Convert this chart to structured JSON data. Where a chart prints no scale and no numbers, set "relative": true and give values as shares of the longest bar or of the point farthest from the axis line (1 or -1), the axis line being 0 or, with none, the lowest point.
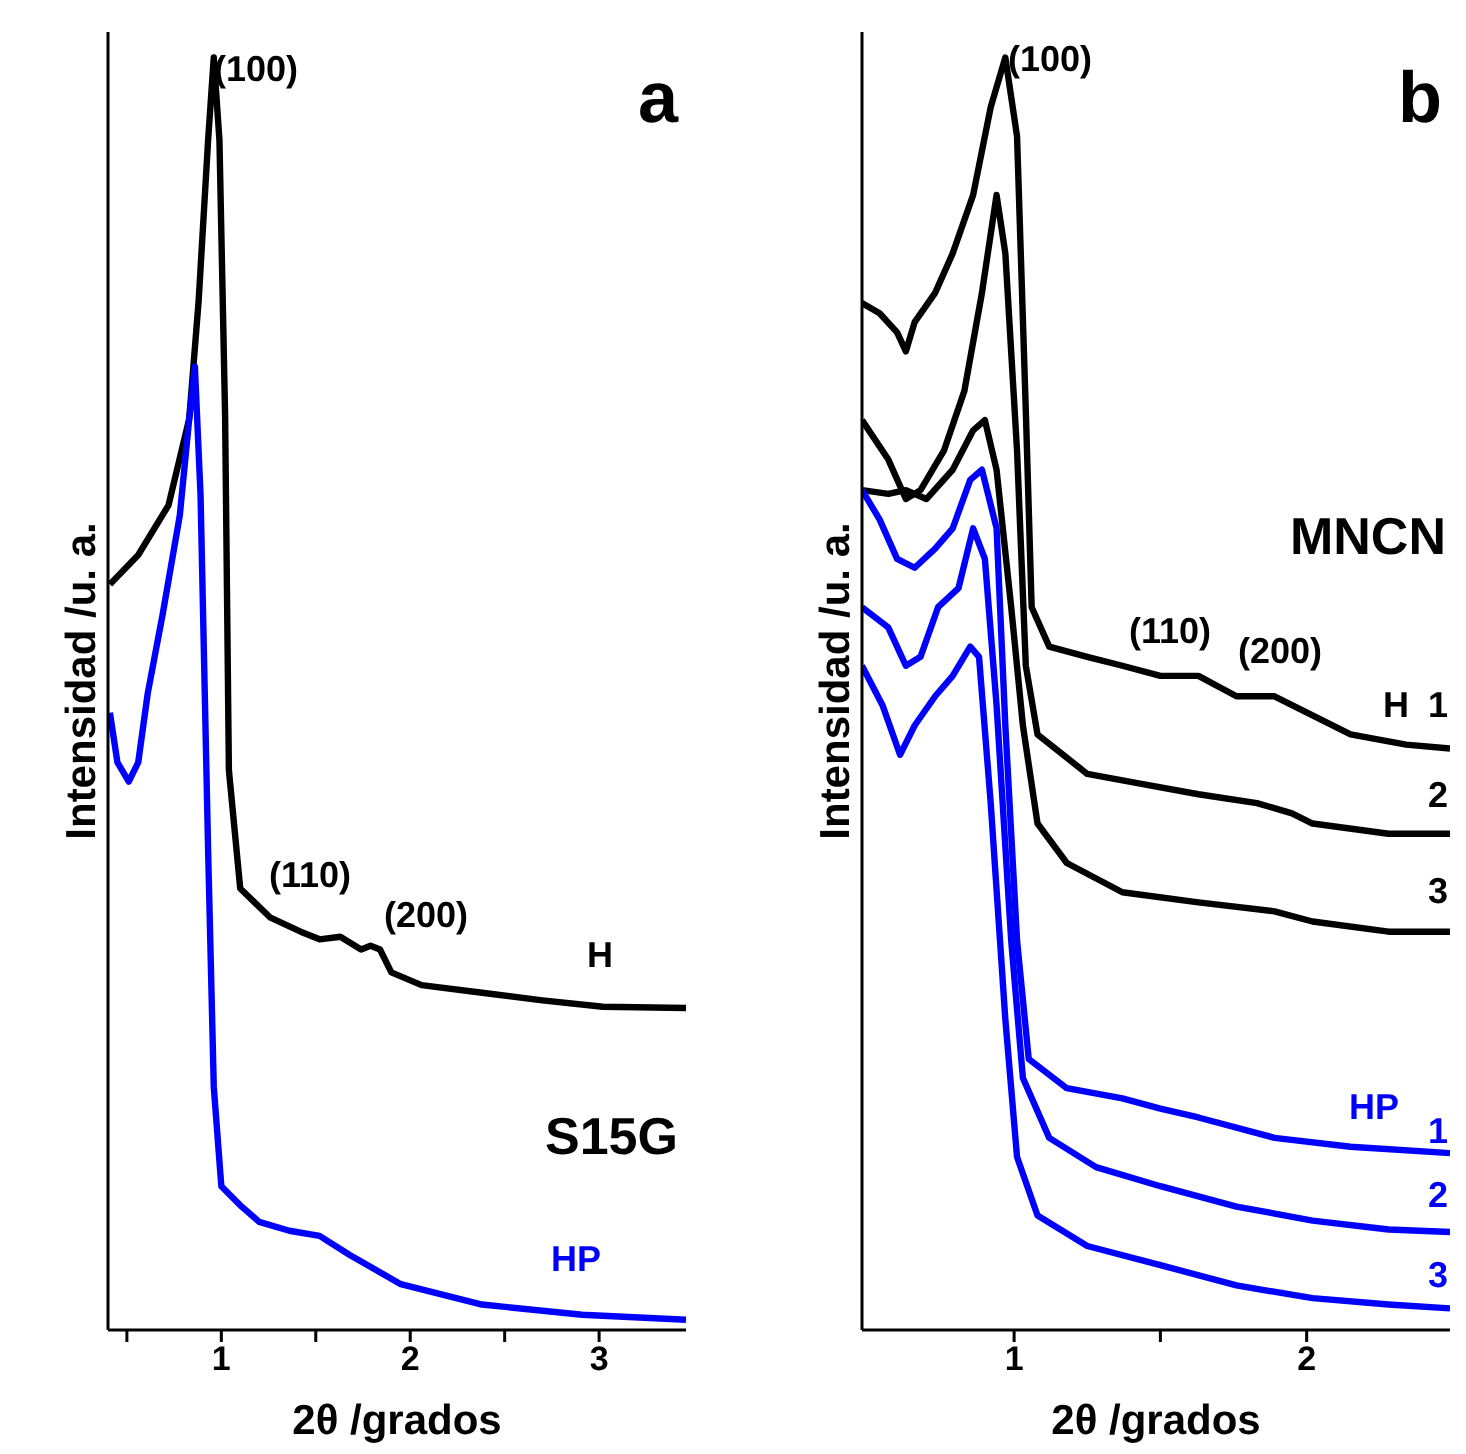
{
  "chart_data": [
    {
      "type": "line",
      "title": "a",
      "subtitle": "S15G",
      "xlabel": "2θ /grados",
      "ylabel": "Intensidad /u. a.",
      "relative": true,
      "tick_labels": "x",
      "grid": false,
      "legend": false,
      "marker": "none",
      "line_style": "solid",
      "xlim": [
        0.4,
        3.46
      ],
      "xticks": [
        {
          "value": 0.5,
          "label": null
        },
        1,
        {
          "value": 1.5,
          "label": null
        },
        2,
        {
          "value": 2.5,
          "label": null
        },
        3
      ],
      "series": [
        {
          "color": "#000000",
          "x": [
            0.41,
            0.56,
            0.72,
            0.83,
            0.88,
            0.93,
            0.96,
            0.99,
            1.02,
            1.04,
            1.1,
            1.26,
            1.42,
            1.52,
            1.63,
            1.74,
            1.79,
            1.84,
            1.9,
            2.06,
            2.38,
            2.7,
            3.02,
            3.46
          ],
          "values": [
            0.586,
            0.609,
            0.648,
            0.716,
            0.809,
            0.935,
            1.0,
            0.935,
            0.718,
            0.44,
            0.347,
            0.324,
            0.313,
            0.307,
            0.309,
            0.299,
            0.302,
            0.299,
            0.281,
            0.271,
            0.265,
            0.259,
            0.254,
            0.253
          ]
        },
        {
          "color": "#0000ff",
          "x": [
            0.41,
            0.45,
            0.51,
            0.56,
            0.61,
            0.69,
            0.78,
            0.83,
            0.86,
            0.89,
            0.93,
            0.96,
            1.0,
            1.1,
            1.2,
            1.36,
            1.52,
            1.68,
            1.95,
            2.38,
            2.91,
            3.46
          ],
          "values": [
            0.485,
            0.446,
            0.431,
            0.446,
            0.5,
            0.563,
            0.64,
            0.716,
            0.757,
            0.656,
            0.377,
            0.191,
            0.113,
            0.098,
            0.085,
            0.078,
            0.074,
            0.059,
            0.036,
            0.02,
            0.012,
            0.008
          ]
        }
      ],
      "annotations": [
        "(100)",
        "(110)",
        "(200)",
        "H",
        "HP"
      ]
    },
    {
      "type": "line",
      "title": "b",
      "subtitle": "MNCN",
      "xlabel": "2θ /grados",
      "ylabel": "Intensidad /u. a.",
      "relative": true,
      "tick_labels": "x",
      "grid": false,
      "legend": false,
      "marker": "none",
      "line_style": "solid",
      "xlim": [
        0.48,
        2.49
      ],
      "xticks": [
        1,
        {
          "value": 1.5,
          "label": null
        },
        2
      ],
      "series": [
        {
          "color": "#000000",
          "x": [
            0.48,
            0.54,
            0.6,
            0.63,
            0.66,
            0.73,
            0.79,
            0.86,
            0.92,
            0.97,
            1.01,
            1.04,
            1.06,
            1.12,
            1.25,
            1.37,
            1.5,
            1.63,
            1.76,
            1.89,
            2.02,
            2.15,
            2.34,
            2.49
          ],
          "values": [
            0.807,
            0.799,
            0.784,
            0.769,
            0.792,
            0.815,
            0.846,
            0.892,
            0.961,
            1.0,
            0.938,
            0.722,
            0.568,
            0.537,
            0.529,
            0.522,
            0.514,
            0.514,
            0.498,
            0.498,
            0.483,
            0.468,
            0.46,
            0.457
          ]
        },
        {
          "color": "#000000",
          "x": [
            0.48,
            0.57,
            0.63,
            0.68,
            0.76,
            0.83,
            0.89,
            0.94,
            0.97,
            1.01,
            1.04,
            1.08,
            1.25,
            1.44,
            1.63,
            1.83,
            1.95,
            2.02,
            2.28,
            2.49
          ],
          "values": [
            0.715,
            0.684,
            0.653,
            0.66,
            0.691,
            0.738,
            0.815,
            0.892,
            0.846,
            0.691,
            0.522,
            0.468,
            0.437,
            0.429,
            0.421,
            0.414,
            0.406,
            0.398,
            0.39,
            0.39
          ]
        },
        {
          "color": "#000000",
          "x": [
            0.48,
            0.57,
            0.63,
            0.7,
            0.79,
            0.86,
            0.9,
            0.94,
            0.99,
            1.03,
            1.08,
            1.18,
            1.37,
            1.63,
            1.89,
            2.02,
            2.28,
            2.49
          ],
          "values": [
            0.66,
            0.657,
            0.66,
            0.653,
            0.676,
            0.707,
            0.715,
            0.676,
            0.568,
            0.475,
            0.398,
            0.367,
            0.344,
            0.336,
            0.329,
            0.321,
            0.313,
            0.313
          ]
        },
        {
          "color": "#0000ff",
          "x": [
            0.48,
            0.54,
            0.6,
            0.66,
            0.73,
            0.79,
            0.85,
            0.89,
            0.94,
            0.97,
            1.01,
            1.05,
            1.18,
            1.37,
            1.5,
            1.63,
            1.89,
            2.15,
            2.49
          ],
          "values": [
            0.66,
            0.637,
            0.606,
            0.599,
            0.614,
            0.63,
            0.668,
            0.676,
            0.63,
            0.475,
            0.306,
            0.213,
            0.19,
            0.182,
            0.174,
            0.167,
            0.151,
            0.144,
            0.139
          ]
        },
        {
          "color": "#0000ff",
          "x": [
            0.48,
            0.57,
            0.63,
            0.68,
            0.74,
            0.81,
            0.86,
            0.9,
            0.94,
            0.99,
            1.03,
            1.12,
            1.28,
            1.5,
            1.76,
            2.02,
            2.28,
            2.49
          ],
          "values": [
            0.568,
            0.552,
            0.522,
            0.529,
            0.568,
            0.583,
            0.63,
            0.606,
            0.491,
            0.306,
            0.198,
            0.151,
            0.128,
            0.113,
            0.097,
            0.086,
            0.079,
            0.077
          ]
        },
        {
          "color": "#0000ff",
          "x": [
            0.48,
            0.55,
            0.61,
            0.66,
            0.73,
            0.79,
            0.85,
            0.88,
            0.92,
            0.97,
            1.01,
            1.08,
            1.25,
            1.5,
            1.76,
            2.02,
            2.28,
            2.49
          ],
          "values": [
            0.522,
            0.491,
            0.452,
            0.475,
            0.498,
            0.514,
            0.537,
            0.529,
            0.414,
            0.244,
            0.136,
            0.09,
            0.066,
            0.051,
            0.035,
            0.025,
            0.02,
            0.017
          ]
        }
      ],
      "annotations": [
        "(100)",
        "(110)",
        "(200)",
        "H",
        "1",
        "2",
        "3",
        "HP",
        "1",
        "2",
        "3"
      ]
    }
  ]
}
